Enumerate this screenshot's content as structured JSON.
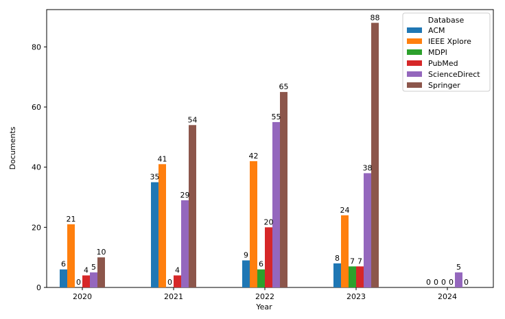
{
  "chart_data": {
    "type": "bar",
    "title": "",
    "xlabel": "Year",
    "ylabel": "Documents",
    "ylim": [
      0,
      92.4
    ],
    "yticks": [
      0,
      20,
      40,
      60,
      80
    ],
    "categories": [
      "2020",
      "2021",
      "2022",
      "2023",
      "2024"
    ],
    "legend": {
      "title": "Database",
      "placement": "top-right"
    },
    "series": [
      {
        "name": "ACM",
        "color": "#1f77b4",
        "values": [
          6,
          35,
          9,
          8,
          0
        ]
      },
      {
        "name": "IEEE Xplore",
        "color": "#ff7f0e",
        "values": [
          21,
          41,
          42,
          24,
          0
        ]
      },
      {
        "name": "MDPI",
        "color": "#2ca02c",
        "values": [
          0,
          0,
          6,
          7,
          0
        ]
      },
      {
        "name": "PubMed",
        "color": "#d62728",
        "values": [
          4,
          4,
          20,
          7,
          0
        ]
      },
      {
        "name": "ScienceDirect",
        "color": "#9467bd",
        "values": [
          5,
          29,
          55,
          38,
          5
        ]
      },
      {
        "name": "Springer",
        "color": "#8c564b",
        "values": [
          10,
          54,
          65,
          88,
          0
        ]
      }
    ]
  }
}
